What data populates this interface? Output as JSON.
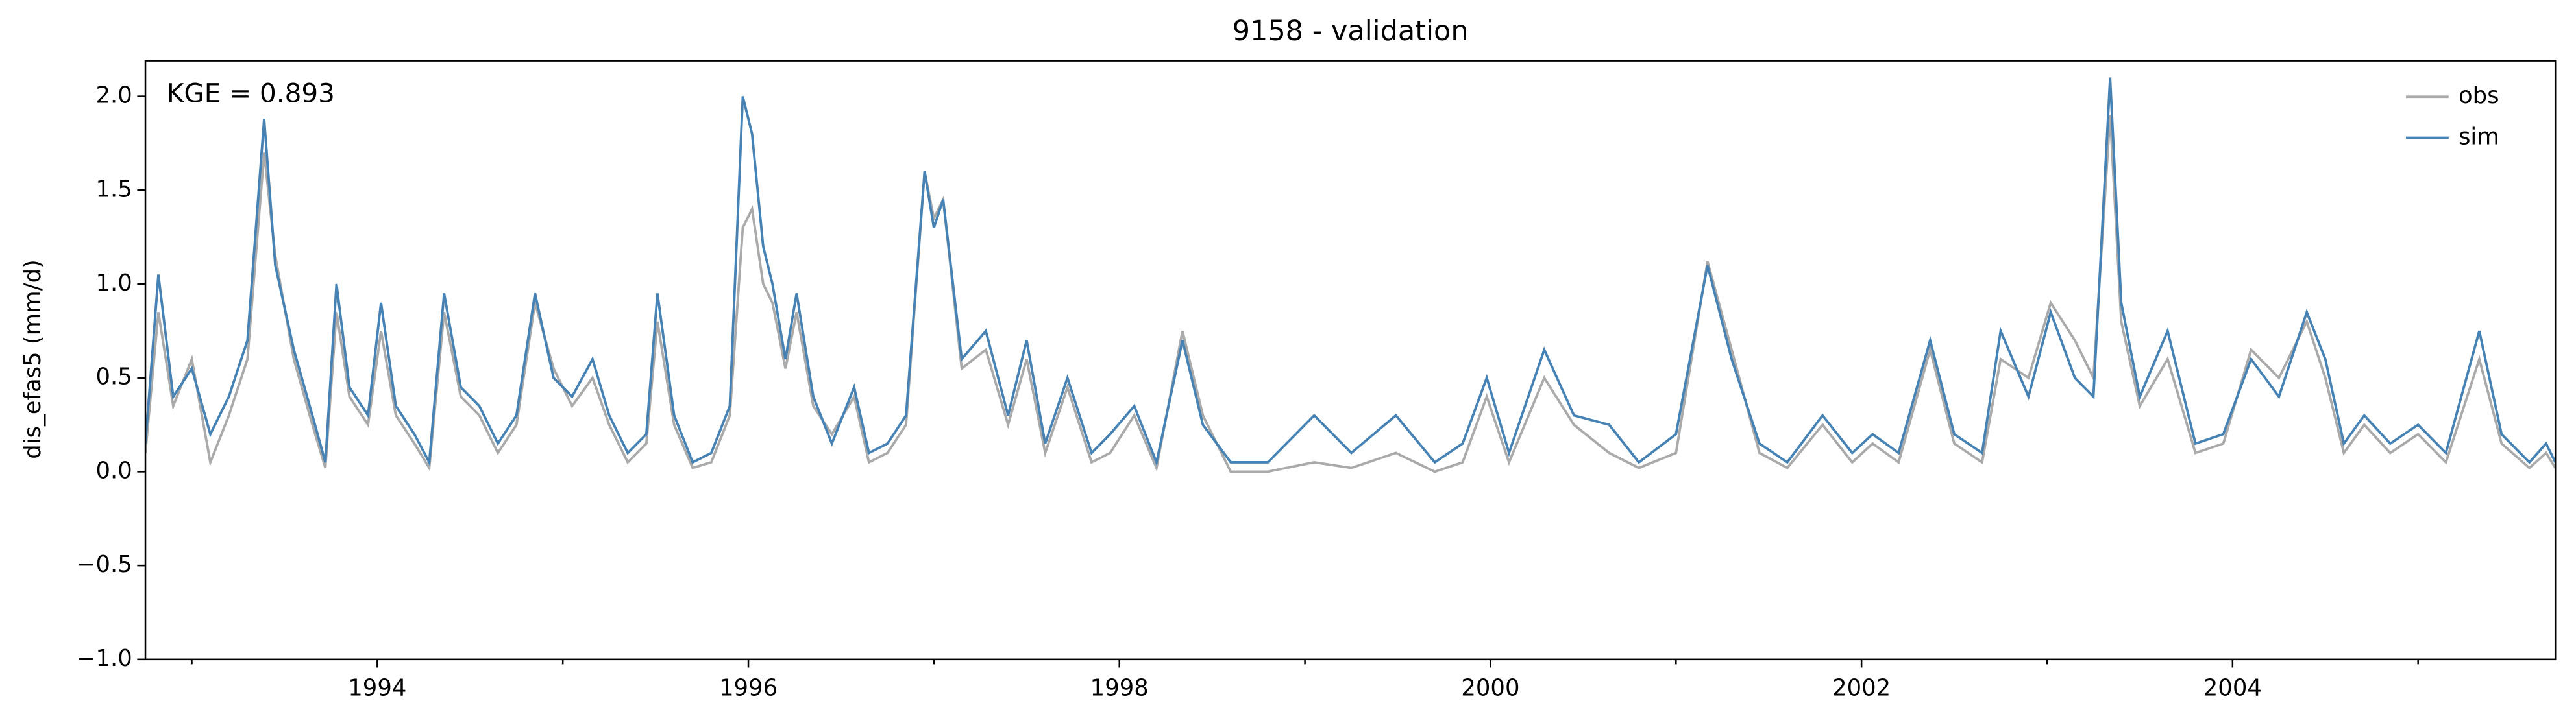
{
  "chart_data": {
    "type": "line",
    "title": "9158 - validation",
    "ylabel": "dis_efas5 (mm/d)",
    "annotation": "KGE = 0.893",
    "x": [
      1992.75,
      1992.82,
      1992.9,
      1993.0,
      1993.1,
      1993.2,
      1993.3,
      1993.39,
      1993.45,
      1993.55,
      1993.65,
      1993.72,
      1993.78,
      1993.85,
      1993.95,
      1994.02,
      1994.1,
      1994.2,
      1994.28,
      1994.36,
      1994.45,
      1994.55,
      1994.65,
      1994.75,
      1994.85,
      1994.95,
      1995.05,
      1995.16,
      1995.25,
      1995.35,
      1995.45,
      1995.51,
      1995.6,
      1995.7,
      1995.8,
      1995.9,
      1995.97,
      1996.02,
      1996.08,
      1996.13,
      1996.2,
      1996.26,
      1996.35,
      1996.45,
      1996.57,
      1996.65,
      1996.75,
      1996.85,
      1996.95,
      1997.0,
      1997.05,
      1997.15,
      1997.28,
      1997.4,
      1997.5,
      1997.6,
      1997.72,
      1997.85,
      1997.95,
      1998.08,
      1998.2,
      1998.34,
      1998.45,
      1998.6,
      1998.8,
      1999.05,
      1999.25,
      1999.49,
      1999.7,
      1999.85,
      1999.98,
      2000.1,
      2000.29,
      2000.45,
      2000.64,
      2000.8,
      2001.0,
      2001.17,
      2001.3,
      2001.45,
      2001.6,
      2001.79,
      2001.95,
      2002.06,
      2002.2,
      2002.37,
      2002.5,
      2002.65,
      2002.75,
      2002.9,
      2003.02,
      2003.15,
      2003.25,
      2003.34,
      2003.4,
      2003.5,
      2003.65,
      2003.8,
      2003.95,
      2004.1,
      2004.25,
      2004.4,
      2004.5,
      2004.6,
      2004.71,
      2004.85,
      2005.0,
      2005.15,
      2005.33,
      2005.45,
      2005.6,
      2005.69,
      2005.74
    ],
    "series": [
      {
        "name": "obs",
        "color": "#aaaaaa",
        "values": [
          0.1,
          0.85,
          0.35,
          0.6,
          0.05,
          0.3,
          0.6,
          1.7,
          1.15,
          0.6,
          0.25,
          0.02,
          0.85,
          0.4,
          0.25,
          0.75,
          0.3,
          0.15,
          0.02,
          0.85,
          0.4,
          0.3,
          0.1,
          0.25,
          0.9,
          0.55,
          0.35,
          0.5,
          0.25,
          0.05,
          0.15,
          0.8,
          0.25,
          0.02,
          0.05,
          0.3,
          1.3,
          1.4,
          1.0,
          0.9,
          0.55,
          0.85,
          0.35,
          0.2,
          0.4,
          0.05,
          0.1,
          0.25,
          1.6,
          1.35,
          1.45,
          0.55,
          0.65,
          0.25,
          0.6,
          0.1,
          0.45,
          0.05,
          0.1,
          0.3,
          0.02,
          0.75,
          0.3,
          0.0,
          0.0,
          0.05,
          0.02,
          0.1,
          0.0,
          0.05,
          0.4,
          0.05,
          0.5,
          0.25,
          0.1,
          0.02,
          0.1,
          1.12,
          0.65,
          0.1,
          0.02,
          0.25,
          0.05,
          0.15,
          0.05,
          0.65,
          0.15,
          0.05,
          0.6,
          0.5,
          0.9,
          0.7,
          0.5,
          1.9,
          0.8,
          0.35,
          0.6,
          0.1,
          0.15,
          0.65,
          0.5,
          0.8,
          0.5,
          0.1,
          0.25,
          0.1,
          0.2,
          0.05,
          0.6,
          0.15,
          0.02,
          0.1,
          0.02
        ]
      },
      {
        "name": "sim",
        "color": "#4682b4",
        "values": [
          0.15,
          1.05,
          0.4,
          0.55,
          0.2,
          0.4,
          0.7,
          1.88,
          1.1,
          0.65,
          0.3,
          0.05,
          1.0,
          0.45,
          0.3,
          0.9,
          0.35,
          0.2,
          0.05,
          0.95,
          0.45,
          0.35,
          0.15,
          0.3,
          0.95,
          0.5,
          0.4,
          0.6,
          0.3,
          0.1,
          0.2,
          0.95,
          0.3,
          0.05,
          0.1,
          0.35,
          2.0,
          1.8,
          1.2,
          1.0,
          0.6,
          0.95,
          0.4,
          0.15,
          0.45,
          0.1,
          0.15,
          0.3,
          1.6,
          1.3,
          1.45,
          0.6,
          0.75,
          0.3,
          0.7,
          0.15,
          0.5,
          0.1,
          0.2,
          0.35,
          0.05,
          0.7,
          0.25,
          0.05,
          0.05,
          0.3,
          0.1,
          0.3,
          0.05,
          0.15,
          0.5,
          0.1,
          0.65,
          0.3,
          0.25,
          0.05,
          0.2,
          1.1,
          0.6,
          0.15,
          0.05,
          0.3,
          0.1,
          0.2,
          0.1,
          0.7,
          0.2,
          0.1,
          0.75,
          0.4,
          0.85,
          0.5,
          0.4,
          2.1,
          0.9,
          0.4,
          0.75,
          0.15,
          0.2,
          0.6,
          0.4,
          0.85,
          0.6,
          0.15,
          0.3,
          0.15,
          0.25,
          0.1,
          0.75,
          0.2,
          0.05,
          0.15,
          0.05
        ]
      }
    ],
    "xlim": [
      1992.75,
      2005.74
    ],
    "xticks": [
      1994,
      1996,
      1998,
      2000,
      2002,
      2004
    ],
    "xminor_ticks": [
      1993,
      1995,
      1997,
      1999,
      2001,
      2003,
      2005
    ],
    "ylim": [
      -1.0,
      2.19
    ],
    "yticks": [
      {
        "value": -1.0,
        "label": "−1.0"
      },
      {
        "value": -0.5,
        "label": "−0.5"
      },
      {
        "value": 0.0,
        "label": "0.0"
      },
      {
        "value": 0.5,
        "label": "0.5"
      },
      {
        "value": 1.0,
        "label": "1.0"
      },
      {
        "value": 1.5,
        "label": "1.5"
      },
      {
        "value": 2.0,
        "label": "2.0"
      }
    ],
    "grid": false,
    "legend": "upper right"
  }
}
